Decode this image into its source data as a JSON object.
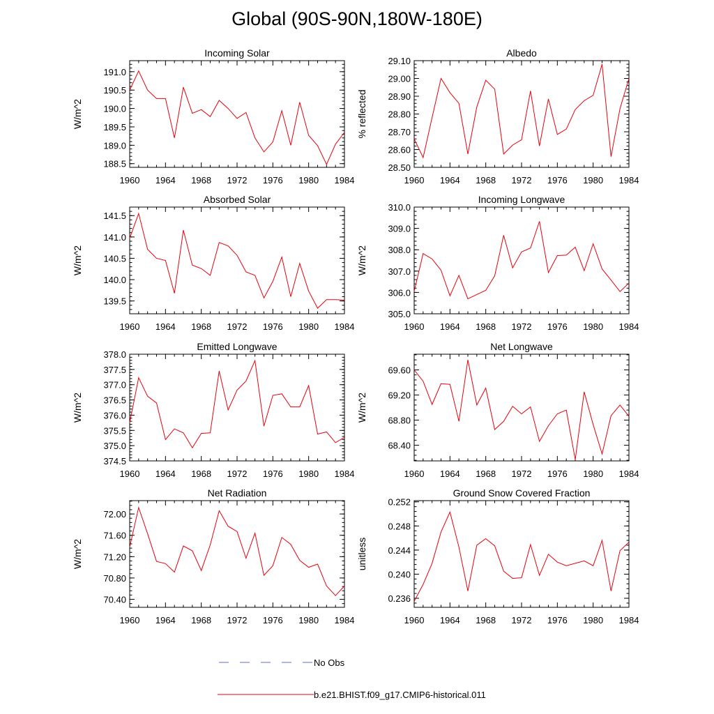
{
  "title": "Global (90S-90N,180W-180E)",
  "legend": {
    "obs_label": "No Obs",
    "model_label": "b.e21.BHIST.f09_g17.CMIP6-historical.011",
    "obs_color": "#5b6fd6",
    "model_color": "#e8000b"
  },
  "chart_data": [
    {
      "type": "line",
      "title": "Incoming Solar",
      "ylabel": "W/m^2",
      "xlim": [
        1960,
        1984
      ],
      "ylim": [
        188.4,
        191.3
      ],
      "xticks": [
        1960,
        1964,
        1968,
        1972,
        1976,
        1980,
        1984
      ],
      "xtick_labels": [
        "1960",
        "1964",
        "1968",
        "1972",
        "1976",
        "1980",
        "1984"
      ],
      "yticks": [
        188.5,
        189.0,
        189.5,
        190.0,
        190.5,
        191.0
      ],
      "ytick_labels": [
        "188.5",
        "189.0",
        "189.5",
        "190.0",
        "190.5",
        "191.0"
      ],
      "x": [
        1960,
        1961,
        1962,
        1963,
        1964,
        1965,
        1966,
        1967,
        1968,
        1969,
        1970,
        1971,
        1972,
        1973,
        1974,
        1975,
        1976,
        1977,
        1978,
        1979,
        1980,
        1981,
        1982,
        1983,
        1984
      ],
      "series": [
        {
          "name": "b.e21.BHIST.f09_g17.CMIP6-historical.011",
          "values": [
            190.5,
            191.02,
            190.5,
            190.27,
            190.27,
            189.2,
            190.58,
            189.87,
            189.97,
            189.78,
            190.22,
            190.0,
            189.73,
            189.89,
            189.2,
            188.82,
            189.09,
            189.94,
            189.0,
            190.17,
            189.27,
            188.99,
            188.48,
            189.03,
            189.35
          ]
        }
      ]
    },
    {
      "type": "line",
      "title": "Albedo",
      "ylabel": "% reflected",
      "xlim": [
        1960,
        1984
      ],
      "ylim": [
        28.5,
        29.1
      ],
      "xticks": [
        1960,
        1964,
        1968,
        1972,
        1976,
        1980,
        1984
      ],
      "xtick_labels": [
        "1960",
        "1964",
        "1968",
        "1972",
        "1976",
        "1980",
        "1984"
      ],
      "yticks": [
        28.5,
        28.6,
        28.7,
        28.8,
        28.9,
        29.0,
        29.1
      ],
      "ytick_labels": [
        "28.50",
        "28.60",
        "28.70",
        "28.80",
        "28.90",
        "29.00",
        "29.10"
      ],
      "x": [
        1960,
        1961,
        1962,
        1963,
        1964,
        1965,
        1966,
        1967,
        1968,
        1969,
        1970,
        1971,
        1972,
        1973,
        1974,
        1975,
        1976,
        1977,
        1978,
        1979,
        1980,
        1981,
        1982,
        1983,
        1984
      ],
      "series": [
        {
          "name": "b.e21.BHIST.f09_g17.CMIP6-historical.011",
          "values": [
            28.66,
            28.555,
            28.78,
            29.0,
            28.92,
            28.86,
            28.575,
            28.84,
            28.99,
            28.94,
            28.575,
            28.625,
            28.655,
            28.93,
            28.62,
            28.885,
            28.685,
            28.715,
            28.825,
            28.875,
            28.905,
            29.08,
            28.56,
            28.83,
            29.0
          ]
        }
      ]
    },
    {
      "type": "line",
      "title": "Absorbed Solar",
      "ylabel": "W/m^2",
      "xlim": [
        1960,
        1984
      ],
      "ylim": [
        139.2,
        141.7
      ],
      "xticks": [
        1960,
        1964,
        1968,
        1972,
        1976,
        1980,
        1984
      ],
      "xtick_labels": [
        "1960",
        "1964",
        "1968",
        "1972",
        "1976",
        "1980",
        "1984"
      ],
      "yticks": [
        139.5,
        140.0,
        140.5,
        141.0,
        141.5
      ],
      "ytick_labels": [
        "139.5",
        "140.0",
        "140.5",
        "141.0",
        "141.5"
      ],
      "x": [
        1960,
        1961,
        1962,
        1963,
        1964,
        1965,
        1966,
        1967,
        1968,
        1969,
        1970,
        1971,
        1972,
        1973,
        1974,
        1975,
        1976,
        1977,
        1978,
        1979,
        1980,
        1981,
        1982,
        1983,
        1984
      ],
      "series": [
        {
          "name": "b.e21.BHIST.f09_g17.CMIP6-historical.011",
          "values": [
            140.97,
            141.55,
            140.71,
            140.5,
            140.45,
            139.68,
            141.16,
            140.34,
            140.26,
            140.1,
            140.87,
            140.79,
            140.57,
            140.18,
            140.1,
            139.57,
            139.96,
            140.53,
            139.6,
            140.38,
            139.73,
            139.33,
            139.53,
            139.53,
            139.52
          ]
        }
      ]
    },
    {
      "type": "line",
      "title": "Incoming Longwave",
      "ylabel": "W/m^2",
      "xlim": [
        1960,
        1984
      ],
      "ylim": [
        305.0,
        310.0
      ],
      "xticks": [
        1960,
        1964,
        1968,
        1972,
        1976,
        1980,
        1984
      ],
      "xtick_labels": [
        "1960",
        "1964",
        "1968",
        "1972",
        "1976",
        "1980",
        "1984"
      ],
      "yticks": [
        305.0,
        306.0,
        307.0,
        308.0,
        309.0,
        310.0
      ],
      "ytick_labels": [
        "305.0",
        "306.0",
        "307.0",
        "308.0",
        "309.0",
        "310.0"
      ],
      "x": [
        1960,
        1961,
        1962,
        1963,
        1964,
        1965,
        1966,
        1967,
        1968,
        1969,
        1970,
        1971,
        1972,
        1973,
        1974,
        1975,
        1976,
        1977,
        1978,
        1979,
        1980,
        1981,
        1982,
        1983,
        1984
      ],
      "series": [
        {
          "name": "b.e21.BHIST.f09_g17.CMIP6-historical.011",
          "values": [
            306.05,
            307.82,
            307.57,
            307.04,
            305.84,
            306.8,
            305.7,
            305.9,
            306.1,
            306.78,
            308.68,
            307.15,
            307.9,
            308.08,
            309.33,
            306.93,
            307.73,
            307.75,
            308.12,
            307.02,
            308.28,
            307.1,
            306.58,
            306.04,
            306.44
          ]
        }
      ]
    },
    {
      "type": "line",
      "title": "Emitted Longwave",
      "ylabel": "W/m^2",
      "xlim": [
        1960,
        1984
      ],
      "ylim": [
        374.5,
        378.0
      ],
      "xticks": [
        1960,
        1964,
        1968,
        1972,
        1976,
        1980,
        1984
      ],
      "xtick_labels": [
        "1960",
        "1964",
        "1968",
        "1972",
        "1976",
        "1980",
        "1984"
      ],
      "yticks": [
        374.5,
        375.0,
        375.5,
        376.0,
        376.5,
        377.0,
        377.5,
        378.0
      ],
      "ytick_labels": [
        "374.5",
        "375.0",
        "375.5",
        "376.0",
        "376.5",
        "377.0",
        "377.5",
        "378.0"
      ],
      "x": [
        1960,
        1961,
        1962,
        1963,
        1964,
        1965,
        1966,
        1967,
        1968,
        1969,
        1970,
        1971,
        1972,
        1973,
        1974,
        1975,
        1976,
        1977,
        1978,
        1979,
        1980,
        1981,
        1982,
        1983,
        1984
      ],
      "series": [
        {
          "name": "b.e21.BHIST.f09_g17.CMIP6-historical.011",
          "values": [
            375.75,
            377.23,
            376.62,
            376.4,
            375.2,
            375.55,
            375.42,
            374.93,
            375.4,
            375.42,
            377.45,
            376.17,
            376.82,
            377.12,
            377.79,
            375.64,
            376.65,
            376.7,
            376.27,
            376.27,
            376.97,
            375.38,
            375.45,
            375.1,
            375.27
          ]
        }
      ]
    },
    {
      "type": "line",
      "title": "Net Longwave",
      "ylabel": "W/m^2",
      "xlim": [
        1960,
        1984
      ],
      "ylim": [
        68.15,
        69.85
      ],
      "xticks": [
        1960,
        1964,
        1968,
        1972,
        1976,
        1980,
        1984
      ],
      "xtick_labels": [
        "1960",
        "1964",
        "1968",
        "1972",
        "1976",
        "1980",
        "1984"
      ],
      "yticks": [
        68.4,
        68.8,
        69.2,
        69.6
      ],
      "ytick_labels": [
        "68.40",
        "68.80",
        "69.20",
        "69.60"
      ],
      "x": [
        1960,
        1961,
        1962,
        1963,
        1964,
        1965,
        1966,
        1967,
        1968,
        1969,
        1970,
        1971,
        1972,
        1973,
        1974,
        1975,
        1976,
        1977,
        1978,
        1979,
        1980,
        1981,
        1982,
        1983,
        1984
      ],
      "series": [
        {
          "name": "b.e21.BHIST.f09_g17.CMIP6-historical.011",
          "values": [
            69.6,
            69.42,
            69.05,
            69.38,
            69.37,
            68.78,
            69.76,
            69.04,
            69.31,
            68.65,
            68.78,
            69.02,
            68.9,
            69.01,
            68.46,
            68.71,
            68.9,
            68.96,
            68.17,
            69.25,
            68.73,
            68.26,
            68.87,
            69.04,
            68.86
          ]
        }
      ]
    },
    {
      "type": "line",
      "title": "Net Radiation",
      "ylabel": "W/m^2",
      "xlim": [
        1960,
        1984
      ],
      "ylim": [
        70.25,
        72.25
      ],
      "xticks": [
        1960,
        1964,
        1968,
        1972,
        1976,
        1980,
        1984
      ],
      "xtick_labels": [
        "1960",
        "1964",
        "1968",
        "1972",
        "1976",
        "1980",
        "1984"
      ],
      "yticks": [
        70.4,
        70.8,
        71.2,
        71.6,
        72.0
      ],
      "ytick_labels": [
        "70.40",
        "70.80",
        "71.20",
        "71.60",
        "72.00"
      ],
      "x": [
        1960,
        1961,
        1962,
        1963,
        1964,
        1965,
        1966,
        1967,
        1968,
        1969,
        1970,
        1971,
        1972,
        1973,
        1974,
        1975,
        1976,
        1977,
        1978,
        1979,
        1980,
        1981,
        1982,
        1983,
        1984
      ],
      "series": [
        {
          "name": "b.e21.BHIST.f09_g17.CMIP6-historical.011",
          "values": [
            71.38,
            72.12,
            71.63,
            71.11,
            71.07,
            70.91,
            71.4,
            71.31,
            70.94,
            71.42,
            72.06,
            71.77,
            71.67,
            71.17,
            71.64,
            70.85,
            71.03,
            71.56,
            71.43,
            71.13,
            71.0,
            71.06,
            70.65,
            70.47,
            70.65
          ]
        }
      ]
    },
    {
      "type": "line",
      "title": "Ground Snow Covered Fraction",
      "ylabel": "unitless",
      "xlim": [
        1960,
        1984
      ],
      "ylim": [
        0.2345,
        0.2522
      ],
      "xticks": [
        1960,
        1964,
        1968,
        1972,
        1976,
        1980,
        1984
      ],
      "xtick_labels": [
        "1960",
        "1964",
        "1968",
        "1972",
        "1976",
        "1980",
        "1984"
      ],
      "yticks": [
        0.236,
        0.24,
        0.244,
        0.248,
        0.252
      ],
      "ytick_labels": [
        "0.236",
        "0.240",
        "0.244",
        "0.248",
        "0.252"
      ],
      "x": [
        1960,
        1961,
        1962,
        1963,
        1964,
        1965,
        1966,
        1967,
        1968,
        1969,
        1970,
        1971,
        1972,
        1973,
        1974,
        1975,
        1976,
        1977,
        1978,
        1979,
        1980,
        1981,
        1982,
        1983,
        1984
      ],
      "series": [
        {
          "name": "b.e21.BHIST.f09_g17.CMIP6-historical.011",
          "values": [
            0.2355,
            0.2383,
            0.2418,
            0.247,
            0.2503,
            0.2445,
            0.2372,
            0.2448,
            0.2459,
            0.2447,
            0.2405,
            0.2393,
            0.2394,
            0.2449,
            0.2398,
            0.2433,
            0.242,
            0.2414,
            0.2418,
            0.2422,
            0.2414,
            0.2456,
            0.2372,
            0.2439,
            0.2453
          ]
        }
      ]
    }
  ]
}
